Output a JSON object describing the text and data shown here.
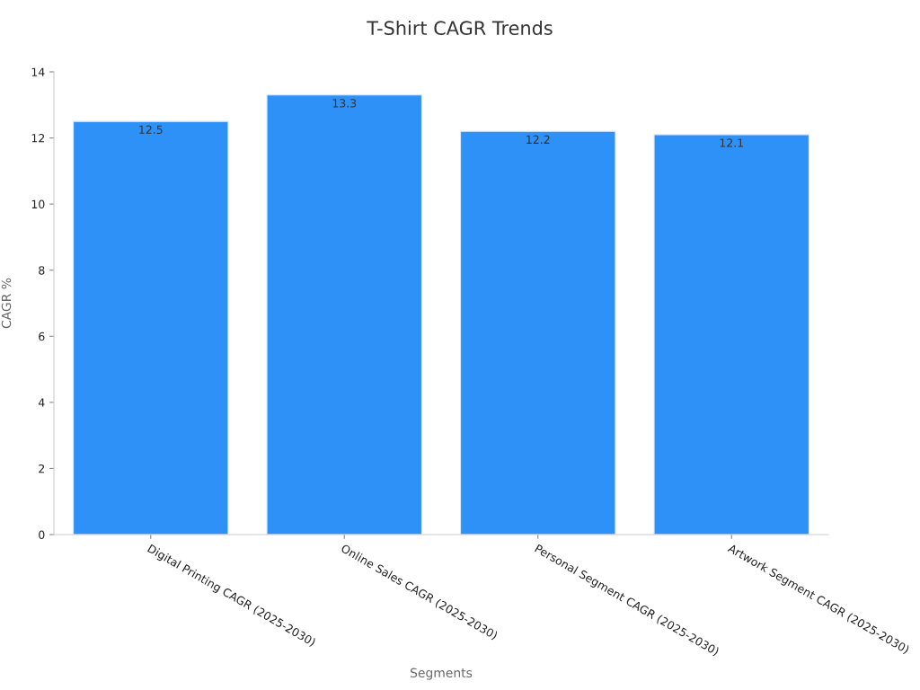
{
  "chart_data": {
    "type": "bar",
    "title": "T-Shirt CAGR Trends",
    "xlabel": "Segments",
    "ylabel": "CAGR %",
    "categories": [
      "Digital Printing CAGR (2025-2030)",
      "Online Sales CAGR (2025-2030)",
      "Personal Segment CAGR (2025-2030)",
      "Artwork Segment CAGR (2025-2030)"
    ],
    "values": [
      12.5,
      13.3,
      12.2,
      12.1
    ],
    "color": "#2e91f8",
    "ylim": [
      0,
      14
    ],
    "yticks": [
      0,
      2,
      4,
      6,
      8,
      10,
      12,
      14
    ],
    "data_labels": true
  }
}
